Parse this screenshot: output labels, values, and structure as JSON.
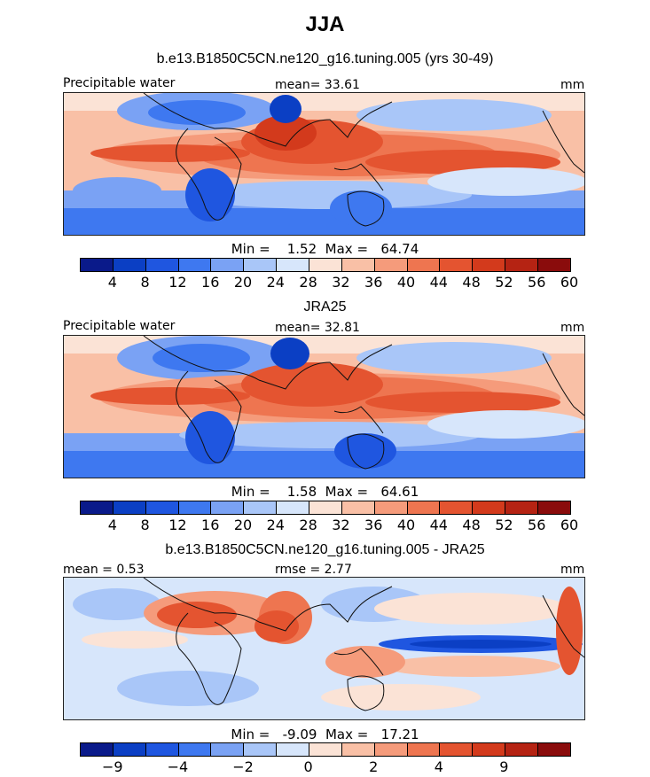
{
  "season_title": "JJA",
  "palette": [
    "#0a1a8a",
    "#0b3fc4",
    "#1f56e0",
    "#3e78f0",
    "#7aa2f4",
    "#a9c6f8",
    "#d7e6fb",
    "#fbe3d6",
    "#f9c0a6",
    "#f59b7b",
    "#ee7550",
    "#e45430",
    "#d33a1c",
    "#b52313",
    "#8a0c0c"
  ],
  "coastline_icon": "coastline-icon",
  "panels": [
    {
      "title": "b.e13.B1850C5CN.ne120_g16.tuning.005 (yrs 30-49)",
      "left_label": "Precipitable water",
      "center_label": "mean=  33.61",
      "right_label": "mm",
      "stats": "Min =    1.52  Max =   64.74",
      "min": 1.52,
      "max": 64.74,
      "mean": 33.61,
      "colorbar_ticks": [
        "4",
        "8",
        "12",
        "16",
        "20",
        "24",
        "28",
        "32",
        "36",
        "40",
        "44",
        "48",
        "52",
        "56",
        "60"
      ],
      "tick_step": 1
    },
    {
      "title": "JRA25",
      "left_label": "Precipitable water",
      "center_label": "mean=  32.81",
      "right_label": "mm",
      "stats": "Min =    1.58  Max =   64.61",
      "min": 1.58,
      "max": 64.61,
      "mean": 32.81,
      "colorbar_ticks": [
        "4",
        "8",
        "12",
        "16",
        "20",
        "24",
        "28",
        "32",
        "36",
        "40",
        "44",
        "48",
        "52",
        "56",
        "60"
      ],
      "tick_step": 1
    },
    {
      "title": "b.e13.B1850C5CN.ne120_g16.tuning.005 - JRA25",
      "left_label": "mean =    0.53",
      "center_label": "rmse =    2.77",
      "right_label": "mm",
      "stats": "Min =   -9.09  Max =   17.21",
      "min": -9.09,
      "max": 17.21,
      "mean": 0.53,
      "rmse": 2.77,
      "colorbar_ticks": [
        "−9",
        "−4",
        "−2",
        "0",
        "2",
        "4",
        "9"
      ],
      "tick_step": 2
    }
  ]
}
